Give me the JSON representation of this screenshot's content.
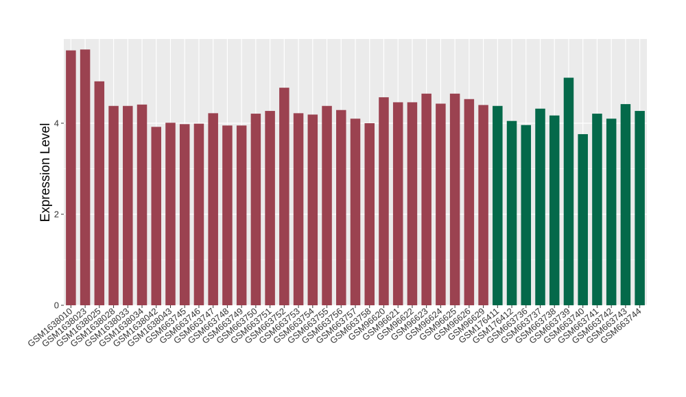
{
  "chart_data": {
    "type": "bar",
    "title": "",
    "xlabel": "",
    "ylabel": "Expression Level",
    "ylim": [
      0,
      5.85
    ],
    "yticks": [
      0,
      2,
      4
    ],
    "grid": true,
    "categories": [
      "GSM1638010",
      "GSM1638023",
      "GSM1638025",
      "GSM1638028",
      "GSM1638033",
      "GSM1638034",
      "GSM1638042",
      "GSM1638043",
      "GSM663745",
      "GSM663746",
      "GSM663747",
      "GSM663748",
      "GSM663749",
      "GSM663750",
      "GSM663751",
      "GSM663752",
      "GSM663753",
      "GSM663754",
      "GSM663755",
      "GSM663756",
      "GSM663757",
      "GSM663758",
      "GSM96620",
      "GSM96621",
      "GSM96622",
      "GSM96623",
      "GSM96624",
      "GSM96625",
      "GSM96626",
      "GSM96629",
      "GSM176411",
      "GSM176412",
      "GSM663736",
      "GSM663737",
      "GSM663738",
      "GSM663739",
      "GSM663740",
      "GSM663741",
      "GSM663742",
      "GSM663743",
      "GSM663744"
    ],
    "values": [
      5.6,
      5.62,
      4.92,
      4.38,
      4.38,
      4.41,
      3.92,
      4.01,
      3.98,
      3.99,
      4.22,
      3.95,
      3.95,
      4.21,
      4.27,
      4.78,
      4.22,
      4.19,
      4.38,
      4.29,
      4.1,
      4.0,
      4.57,
      4.46,
      4.46,
      4.65,
      4.43,
      4.65,
      4.53,
      4.4,
      4.38,
      4.05,
      3.96,
      4.32,
      4.17,
      5.0,
      3.76,
      4.21,
      4.1,
      4.42,
      4.27
    ],
    "groups": [
      0,
      0,
      0,
      0,
      0,
      0,
      0,
      0,
      0,
      0,
      0,
      0,
      0,
      0,
      0,
      0,
      0,
      0,
      0,
      0,
      0,
      0,
      0,
      0,
      0,
      0,
      0,
      0,
      0,
      0,
      1,
      1,
      1,
      1,
      1,
      1,
      1,
      1,
      1,
      1,
      1
    ],
    "colors": [
      "#9B4250",
      "#04694A"
    ],
    "panel_color": "#EBEBEB",
    "grid_color": "#FFFFFF"
  }
}
